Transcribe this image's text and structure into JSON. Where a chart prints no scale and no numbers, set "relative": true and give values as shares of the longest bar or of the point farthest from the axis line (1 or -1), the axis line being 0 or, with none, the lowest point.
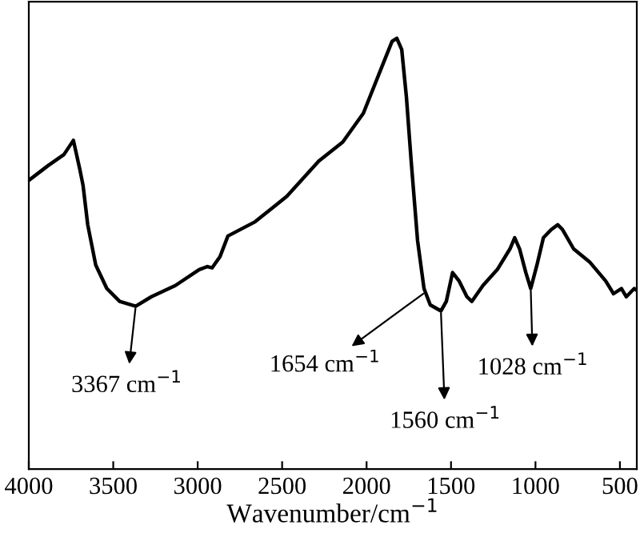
{
  "chart_data": {
    "type": "line",
    "relative": true,
    "xlabel": "Wavenumber/cm$^{−1}$",
    "xlim": [
      4000,
      400
    ],
    "xticks": [
      4000,
      3500,
      3000,
      2500,
      2000,
      1500,
      1000,
      500
    ],
    "tick_labels": "x",
    "grid": false,
    "legend": false,
    "marker": "none",
    "line_style": "solid",
    "series": [
      {
        "color": "#000000",
        "x": [
          4000,
          3887,
          3792,
          3736,
          3698,
          3679,
          3651,
          3604,
          3538,
          3462,
          3367,
          3274,
          3132,
          2991,
          2943,
          2915,
          2868,
          2821,
          2660,
          2472,
          2283,
          2141,
          2019,
          1906,
          1849,
          1821,
          1792,
          1764,
          1736,
          1698,
          1660,
          1623,
          1560,
          1528,
          1491,
          1453,
          1406,
          1377,
          1311,
          1226,
          1151,
          1123,
          1094,
          1057,
          1028,
          991,
          953,
          906,
          868,
          840,
          774,
          680,
          585,
          538,
          491,
          462,
          415,
          400
        ],
        "values": [
          0.67,
          0.704,
          0.73,
          0.763,
          0.696,
          0.659,
          0.567,
          0.474,
          0.419,
          0.389,
          0.378,
          0.4,
          0.426,
          0.463,
          0.47,
          0.467,
          0.493,
          0.541,
          0.574,
          0.633,
          0.715,
          0.759,
          0.826,
          0.937,
          0.993,
          1.0,
          0.974,
          0.863,
          0.715,
          0.53,
          0.419,
          0.381,
          0.367,
          0.389,
          0.456,
          0.437,
          0.4,
          0.389,
          0.426,
          0.463,
          0.511,
          0.537,
          0.511,
          0.456,
          0.419,
          0.474,
          0.537,
          0.556,
          0.567,
          0.556,
          0.511,
          0.481,
          0.437,
          0.407,
          0.419,
          0.4,
          0.419,
          0.415
        ]
      }
    ],
    "annotations": [
      {
        "text": "3367 cm$^{−1}$",
        "x": 3367,
        "y": 0.378
      },
      {
        "text": "1654 cm$^{−1}$",
        "x": 1654,
        "y": 0.41
      },
      {
        "text": "1560 cm$^{−1}$",
        "x": 1560,
        "y": 0.367
      },
      {
        "text": "1028 cm$^{−1}$",
        "x": 1028,
        "y": 0.419
      }
    ]
  }
}
